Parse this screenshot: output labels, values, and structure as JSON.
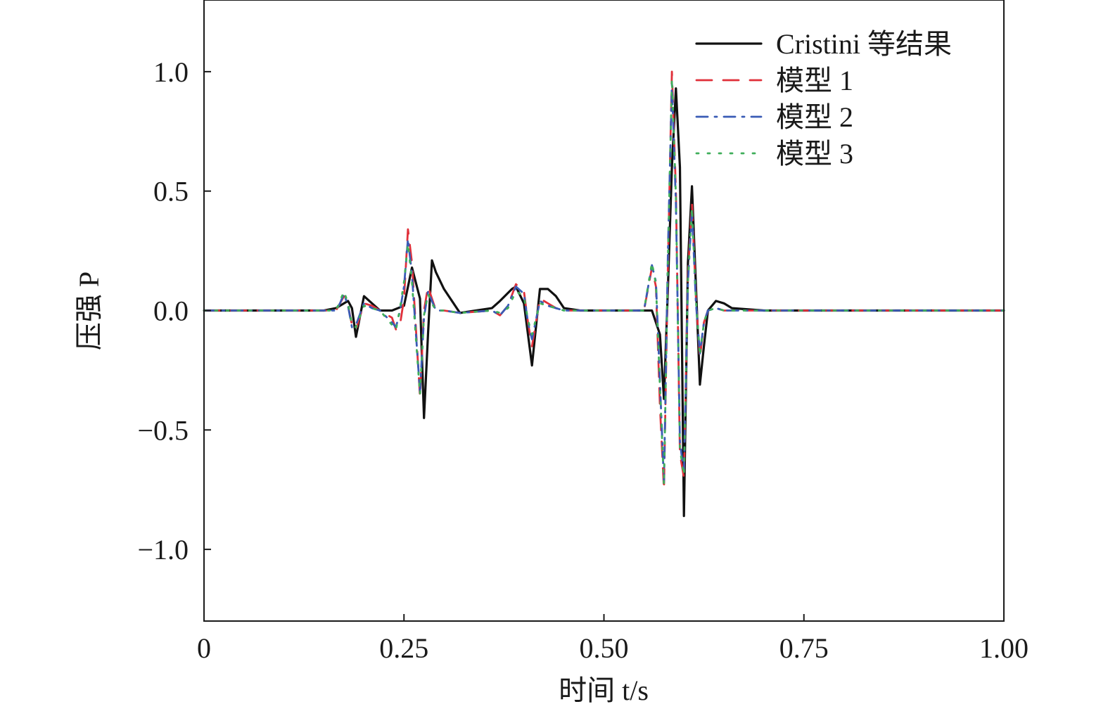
{
  "chart_data": {
    "type": "line",
    "xlabel": "时间 t/s",
    "ylabel": "压强 P",
    "xlim": [
      0,
      1.0
    ],
    "ylim": [
      -1.3,
      1.3
    ],
    "x_ticks": [
      0,
      0.25,
      0.5,
      0.75,
      1.0
    ],
    "x_tick_labels": [
      "0",
      "0.25",
      "0.50",
      "0.75",
      "1.00"
    ],
    "y_ticks": [
      1.0,
      0.5,
      0.0,
      -0.5,
      -1.0
    ],
    "y_tick_labels": [
      "1.0",
      "0.5",
      "0.0",
      "−0.5",
      "−1.0"
    ],
    "grid": false,
    "legend_position": "top-right",
    "series": [
      {
        "name": "Cristini 等结果",
        "color": "#111111",
        "dash": "solid",
        "x": [
          0,
          0.15,
          0.165,
          0.175,
          0.18,
          0.185,
          0.19,
          0.2,
          0.21,
          0.22,
          0.235,
          0.25,
          0.26,
          0.27,
          0.275,
          0.28,
          0.285,
          0.29,
          0.3,
          0.32,
          0.34,
          0.36,
          0.37,
          0.385,
          0.39,
          0.4,
          0.41,
          0.42,
          0.43,
          0.44,
          0.45,
          0.47,
          0.5,
          0.55,
          0.56,
          0.57,
          0.575,
          0.58,
          0.585,
          0.59,
          0.595,
          0.6,
          0.605,
          0.61,
          0.615,
          0.62,
          0.625,
          0.63,
          0.64,
          0.65,
          0.66,
          0.7,
          0.8,
          0.9,
          1.0
        ],
        "y": [
          0,
          0,
          0.01,
          0.03,
          0.04,
          0.01,
          -0.11,
          0.06,
          0.03,
          0.0,
          0.0,
          0.02,
          0.18,
          0.05,
          -0.45,
          -0.1,
          0.21,
          0.16,
          0.09,
          -0.01,
          0.0,
          0.01,
          0.04,
          0.09,
          0.1,
          0.03,
          -0.23,
          0.09,
          0.09,
          0.06,
          0.01,
          0.0,
          0.0,
          0.0,
          0.0,
          -0.1,
          -0.37,
          0.1,
          0.6,
          0.93,
          0.6,
          -0.86,
          0.2,
          0.52,
          0.1,
          -0.31,
          -0.15,
          0.0,
          0.04,
          0.03,
          0.01,
          0.0,
          0.0,
          0.0,
          0.0
        ]
      },
      {
        "name": "模型 1",
        "color": "#e0303a",
        "dash": "dashed",
        "x": [
          0,
          0.15,
          0.165,
          0.17,
          0.175,
          0.18,
          0.185,
          0.19,
          0.2,
          0.21,
          0.22,
          0.235,
          0.24,
          0.245,
          0.25,
          0.255,
          0.26,
          0.265,
          0.27,
          0.275,
          0.28,
          0.285,
          0.29,
          0.3,
          0.32,
          0.36,
          0.37,
          0.38,
          0.39,
          0.4,
          0.405,
          0.41,
          0.42,
          0.43,
          0.44,
          0.45,
          0.47,
          0.5,
          0.55,
          0.56,
          0.565,
          0.57,
          0.575,
          0.58,
          0.585,
          0.59,
          0.595,
          0.6,
          0.605,
          0.61,
          0.615,
          0.62,
          0.625,
          0.63,
          0.64,
          0.65,
          0.7,
          0.8,
          0.9,
          1.0
        ],
        "y": [
          0,
          0,
          0.0,
          0.03,
          0.06,
          0.02,
          -0.06,
          -0.08,
          0.03,
          0.02,
          0.0,
          -0.03,
          -0.08,
          -0.06,
          0.05,
          0.34,
          0.2,
          -0.08,
          -0.36,
          0.0,
          0.1,
          0.05,
          0.0,
          0.0,
          -0.01,
          0.0,
          -0.02,
          0.02,
          0.11,
          0.08,
          -0.05,
          -0.15,
          0.05,
          0.03,
          0.01,
          0.0,
          0.0,
          0.0,
          0.0,
          0.18,
          0.1,
          -0.4,
          -0.75,
          0.2,
          1.0,
          0.5,
          -0.6,
          -0.7,
          0.15,
          0.45,
          0.05,
          -0.2,
          -0.05,
          0.0,
          0.01,
          0.0,
          0.0,
          0.0,
          0.0,
          0.0
        ]
      },
      {
        "name": "模型 2",
        "color": "#3a5bb5",
        "dash": "dashdot",
        "x": [
          0,
          0.15,
          0.165,
          0.17,
          0.175,
          0.18,
          0.185,
          0.19,
          0.2,
          0.21,
          0.22,
          0.235,
          0.24,
          0.245,
          0.25,
          0.255,
          0.26,
          0.265,
          0.27,
          0.275,
          0.28,
          0.285,
          0.29,
          0.3,
          0.32,
          0.36,
          0.37,
          0.38,
          0.39,
          0.4,
          0.405,
          0.41,
          0.42,
          0.43,
          0.44,
          0.45,
          0.47,
          0.5,
          0.55,
          0.56,
          0.565,
          0.57,
          0.575,
          0.58,
          0.585,
          0.59,
          0.595,
          0.6,
          0.605,
          0.61,
          0.615,
          0.62,
          0.625,
          0.63,
          0.64,
          0.65,
          0.7,
          0.8,
          0.9,
          1.0
        ],
        "y": [
          0,
          0,
          0.0,
          0.03,
          0.07,
          0.02,
          -0.07,
          -0.06,
          0.03,
          0.01,
          0.0,
          -0.05,
          -0.07,
          0.0,
          0.1,
          0.3,
          0.15,
          -0.1,
          -0.34,
          -0.03,
          0.08,
          0.04,
          0.0,
          0.0,
          -0.01,
          0.0,
          -0.02,
          0.02,
          0.1,
          0.07,
          -0.05,
          -0.12,
          0.04,
          0.02,
          0.01,
          0.0,
          0.0,
          0.0,
          0.0,
          0.19,
          0.12,
          -0.3,
          -0.72,
          0.25,
          0.95,
          0.45,
          -0.55,
          -0.68,
          0.12,
          0.42,
          0.03,
          -0.18,
          -0.05,
          0.0,
          0.01,
          0.0,
          0.0,
          0.0,
          0.0,
          0.0
        ]
      },
      {
        "name": "模型 3",
        "color": "#3fae5a",
        "dash": "dotted",
        "x": [
          0,
          0.15,
          0.165,
          0.17,
          0.175,
          0.18,
          0.185,
          0.19,
          0.2,
          0.21,
          0.22,
          0.235,
          0.24,
          0.245,
          0.25,
          0.255,
          0.26,
          0.265,
          0.27,
          0.275,
          0.28,
          0.285,
          0.29,
          0.3,
          0.32,
          0.36,
          0.37,
          0.38,
          0.39,
          0.4,
          0.405,
          0.41,
          0.42,
          0.43,
          0.44,
          0.45,
          0.47,
          0.5,
          0.55,
          0.56,
          0.565,
          0.57,
          0.575,
          0.58,
          0.585,
          0.59,
          0.595,
          0.6,
          0.605,
          0.61,
          0.615,
          0.62,
          0.625,
          0.63,
          0.64,
          0.65,
          0.7,
          0.8,
          0.9,
          1.0
        ],
        "y": [
          0,
          0,
          0.0,
          0.04,
          0.08,
          0.03,
          -0.06,
          -0.07,
          0.02,
          0.01,
          0.0,
          -0.06,
          -0.08,
          0.01,
          0.12,
          0.28,
          0.12,
          -0.12,
          -0.35,
          -0.02,
          0.07,
          0.03,
          0.0,
          0.0,
          -0.01,
          0.0,
          -0.01,
          0.01,
          0.08,
          0.06,
          -0.04,
          -0.1,
          0.03,
          0.02,
          0.01,
          0.0,
          0.0,
          0.0,
          0.0,
          0.2,
          0.11,
          -0.32,
          -0.73,
          0.22,
          0.97,
          0.48,
          -0.58,
          -0.69,
          0.13,
          0.43,
          0.04,
          -0.19,
          -0.05,
          0.0,
          0.01,
          0.0,
          0.0,
          0.0,
          0.0,
          0.0
        ]
      }
    ]
  }
}
